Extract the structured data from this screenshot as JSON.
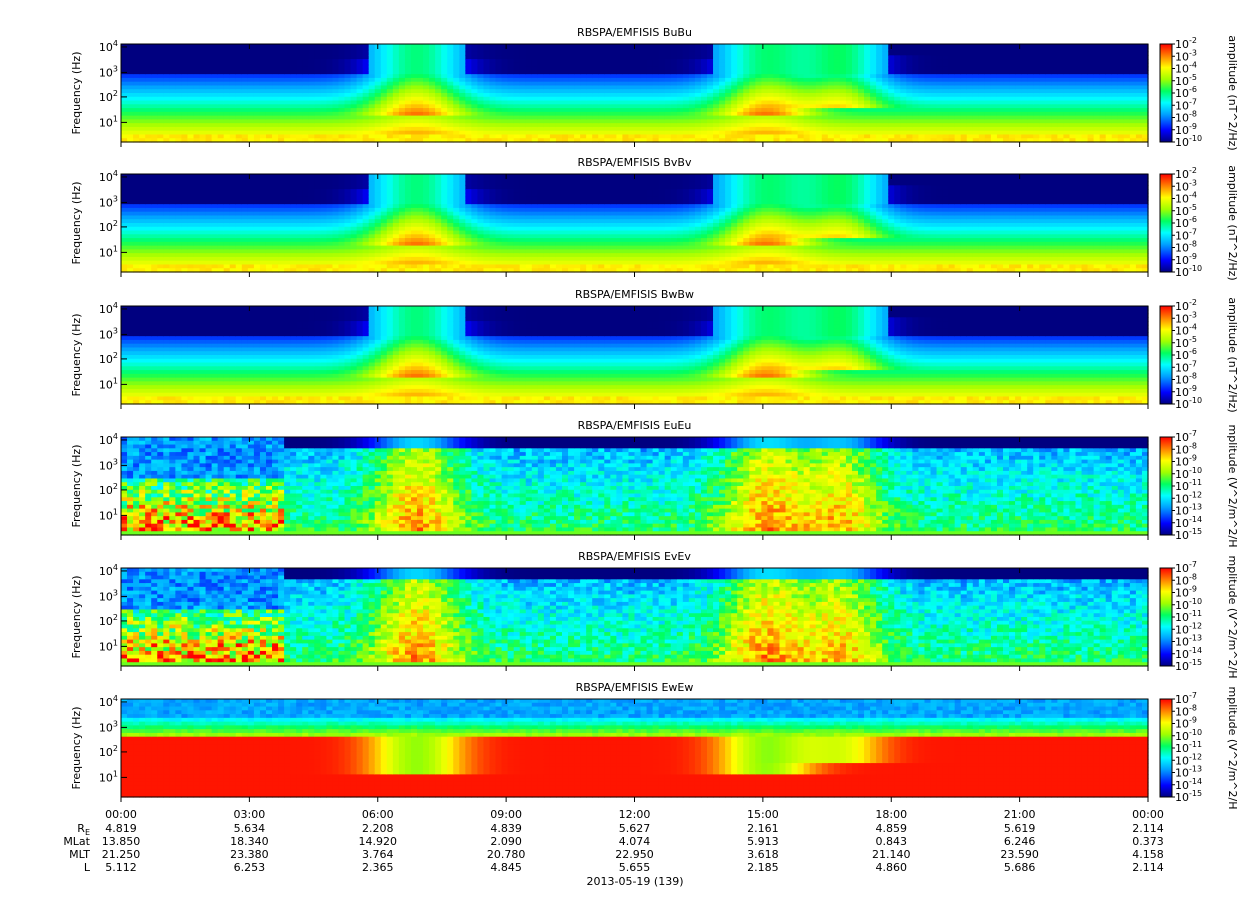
{
  "chart_data": {
    "type": "heatmap",
    "date_label": "2013-05-19 (139)",
    "x_ticks": [
      "00:00",
      "03:00",
      "06:00",
      "09:00",
      "12:00",
      "15:00",
      "18:00",
      "21:00",
      "00:00"
    ],
    "y_ticks": [
      "10^1",
      "10^2",
      "10^3",
      "10^4"
    ],
    "panels": [
      {
        "title": "RBSPA/EMFISIS  BuBu",
        "ylabel": "Frequency (Hz)",
        "cblabel": "amplitude (nT^2/Hz)",
        "cb_ticks": [
          "10^-2",
          "10^-3",
          "10^-4",
          "10^-5",
          "10^-6",
          "10^-7",
          "10^-8",
          "10^-9",
          "10^-10"
        ],
        "kind": "B"
      },
      {
        "title": "RBSPA/EMFISIS  BvBv",
        "ylabel": "Frequency (Hz)",
        "cblabel": "amplitude (nT^2/Hz)",
        "cb_ticks": [
          "10^-2",
          "10^-3",
          "10^-4",
          "10^-5",
          "10^-6",
          "10^-7",
          "10^-8",
          "10^-9",
          "10^-10"
        ],
        "kind": "B"
      },
      {
        "title": "RBSPA/EMFISIS  BwBw",
        "ylabel": "Frequency (Hz)",
        "cblabel": "amplitude (nT^2/Hz)",
        "cb_ticks": [
          "10^-2",
          "10^-3",
          "10^-4",
          "10^-5",
          "10^-6",
          "10^-7",
          "10^-8",
          "10^-9",
          "10^-10"
        ],
        "kind": "B"
      },
      {
        "title": "RBSPA/EMFISIS  EuEu",
        "ylabel": "Frequency (Hz)",
        "cblabel": "mplitude (V^2/m^2/H",
        "cb_ticks": [
          "10^-7",
          "10^-8",
          "10^-9",
          "10^-10",
          "10^-11",
          "10^-12",
          "10^-13",
          "10^-14",
          "10^-15"
        ],
        "kind": "E"
      },
      {
        "title": "RBSPA/EMFISIS  EvEv",
        "ylabel": "Frequency (Hz)",
        "cblabel": "mplitude (V^2/m^2/H",
        "cb_ticks": [
          "10^-7",
          "10^-8",
          "10^-9",
          "10^-10",
          "10^-11",
          "10^-12",
          "10^-13",
          "10^-14",
          "10^-15"
        ],
        "kind": "E"
      },
      {
        "title": "RBSPA/EMFISIS  EwEw",
        "ylabel": "Frequency (Hz)",
        "cblabel": "mplitude (V^2/m^2/H",
        "cb_ticks": [
          "10^-7",
          "10^-8",
          "10^-9",
          "10^-10",
          "10^-11",
          "10^-12",
          "10^-13",
          "10^-14",
          "10^-15"
        ],
        "kind": "Ew"
      }
    ],
    "ephemeris": {
      "rows": [
        {
          "label": "R",
          "label_sub": "E",
          "values": [
            "4.819",
            "5.634",
            "2.208",
            "4.839",
            "5.627",
            "2.161",
            "4.859",
            "5.619",
            "2.114"
          ]
        },
        {
          "label": "MLat",
          "values": [
            "13.850",
            "18.340",
            "14.920",
            "2.090",
            "4.074",
            "5.913",
            "0.843",
            "6.246",
            "0.373"
          ]
        },
        {
          "label": "MLT",
          "values": [
            "21.250",
            "23.380",
            "3.764",
            "20.780",
            "22.950",
            "3.618",
            "21.140",
            "23.590",
            "4.158"
          ]
        },
        {
          "label": "L",
          "values": [
            "5.112",
            "6.253",
            "2.365",
            "4.845",
            "5.655",
            "2.185",
            "4.860",
            "5.686",
            "2.114"
          ]
        }
      ]
    }
  }
}
